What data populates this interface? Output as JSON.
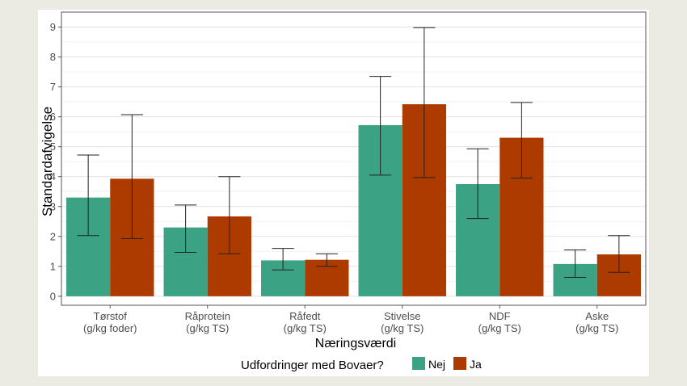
{
  "chart_data": {
    "type": "bar",
    "title": "",
    "xlabel": "Næringsværdi",
    "ylabel": "Standardafvigelse",
    "ylim": [
      -0.3,
      9.5
    ],
    "yticks": [
      0,
      1,
      2,
      3,
      4,
      5,
      6,
      7,
      8,
      9
    ],
    "grid": true,
    "legend": {
      "title": "Udfordringer med Bovaer?",
      "position": "bottom"
    },
    "categories": [
      {
        "name": "Tørstof",
        "unit": "(g/kg foder)"
      },
      {
        "name": "Råprotein",
        "unit": "(g/kg TS)"
      },
      {
        "name": "Råfedt",
        "unit": "(g/kg TS)"
      },
      {
        "name": "Stivelse",
        "unit": "(g/kg TS)"
      },
      {
        "name": "NDF",
        "unit": "(g/kg TS)"
      },
      {
        "name": "Aske",
        "unit": "(g/kg TS)"
      }
    ],
    "series": [
      {
        "name": "Nej",
        "color": "#3ba383",
        "values": [
          3.3,
          2.3,
          1.2,
          5.72,
          3.75,
          1.08
        ],
        "error_low": [
          2.03,
          1.47,
          0.88,
          4.05,
          2.6,
          0.63
        ],
        "error_high": [
          4.72,
          3.05,
          1.6,
          7.35,
          4.93,
          1.55
        ]
      },
      {
        "name": "Ja",
        "color": "#ad3b00",
        "values": [
          3.93,
          2.67,
          1.22,
          6.42,
          5.3,
          1.4
        ],
        "error_low": [
          1.93,
          1.42,
          1.0,
          3.97,
          3.95,
          0.8
        ],
        "error_high": [
          6.07,
          4.0,
          1.42,
          8.98,
          6.48,
          2.03
        ]
      }
    ]
  }
}
